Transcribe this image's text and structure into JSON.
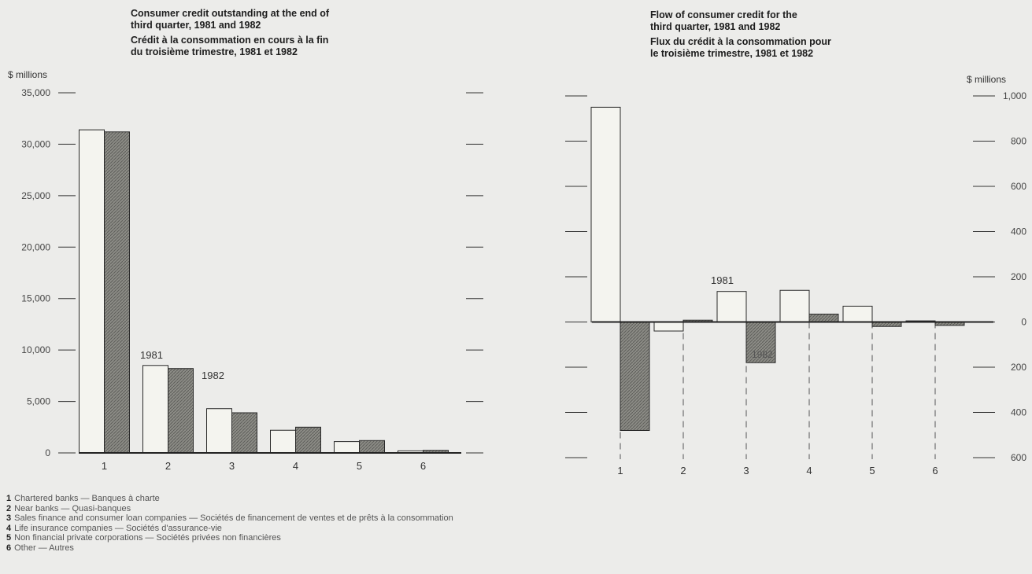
{
  "left_chart": {
    "title_en": [
      "Consumer credit outstanding at the end of",
      "third quarter, 1981 and 1982"
    ],
    "title_fr": [
      "Crédit à la consommation en cours à la fin",
      "du troisième trimestre, 1981 et 1982"
    ],
    "unit": "$ millions"
  },
  "right_chart": {
    "title_en": [
      "Flow of consumer credit for the",
      "third quarter, 1981 and 1982"
    ],
    "title_fr": [
      "Flux du crédit à la consommation pour",
      "le troisième trimestre, 1981 et 1982"
    ],
    "unit": "$ millions"
  },
  "legend": [
    {
      "num": "1",
      "text": "Chartered banks — Banques à charte"
    },
    {
      "num": "2",
      "text": "Near banks — Quasi-banques"
    },
    {
      "num": "3",
      "text": "Sales finance and consumer loan companies — Sociétés de financement de ventes et de prêts à la consommation"
    },
    {
      "num": "4",
      "text": "Life insurance companies — Sociétés d'assurance-vie"
    },
    {
      "num": "5",
      "text": "Non financial private corporations — Sociétés privées non financières"
    },
    {
      "num": "6",
      "text": "Other — Autres"
    }
  ],
  "colors": {
    "series_1981": "#f4f4ef",
    "series_1982": "#8c8c86",
    "outline": "#2a2a2a",
    "background": "#ececea"
  },
  "chart_data": [
    {
      "type": "bar",
      "title": "Consumer credit outstanding at the end of third quarter, 1981 and 1982",
      "ylabel": "$ millions",
      "categories": [
        "1",
        "2",
        "3",
        "4",
        "5",
        "6"
      ],
      "series": [
        {
          "name": "1981",
          "values": [
            31400,
            8500,
            4300,
            2200,
            1100,
            200
          ]
        },
        {
          "name": "1982",
          "values": [
            31200,
            8200,
            3900,
            2500,
            1200,
            250
          ]
        }
      ],
      "ylim": [
        0,
        35000
      ],
      "yticks": [
        0,
        5000,
        10000,
        15000,
        20000,
        25000,
        30000,
        35000
      ],
      "ytick_labels": [
        "0",
        "5,000",
        "10,000",
        "15,000",
        "20,000",
        "25,000",
        "30,000",
        "35,000"
      ],
      "annotations": [
        "1981",
        "1982"
      ],
      "grid": false
    },
    {
      "type": "bar",
      "title": "Flow of consumer credit for the third quarter, 1981 and 1982",
      "ylabel": "$ millions",
      "categories": [
        "1",
        "2",
        "3",
        "4",
        "5",
        "6"
      ],
      "series": [
        {
          "name": "1981",
          "values": [
            950,
            -40,
            135,
            140,
            70,
            5
          ]
        },
        {
          "name": "1982",
          "values": [
            -480,
            8,
            -180,
            35,
            -20,
            -15
          ]
        }
      ],
      "ylim": [
        -600,
        1000
      ],
      "yticks": [
        1000,
        800,
        600,
        400,
        200,
        0,
        -200,
        -400,
        -600
      ],
      "ytick_labels": [
        "1,000",
        "800",
        "600",
        "400",
        "200",
        "0",
        "200",
        "400",
        "600"
      ],
      "annotations": [
        "1981",
        "1982"
      ],
      "grid": false
    }
  ]
}
